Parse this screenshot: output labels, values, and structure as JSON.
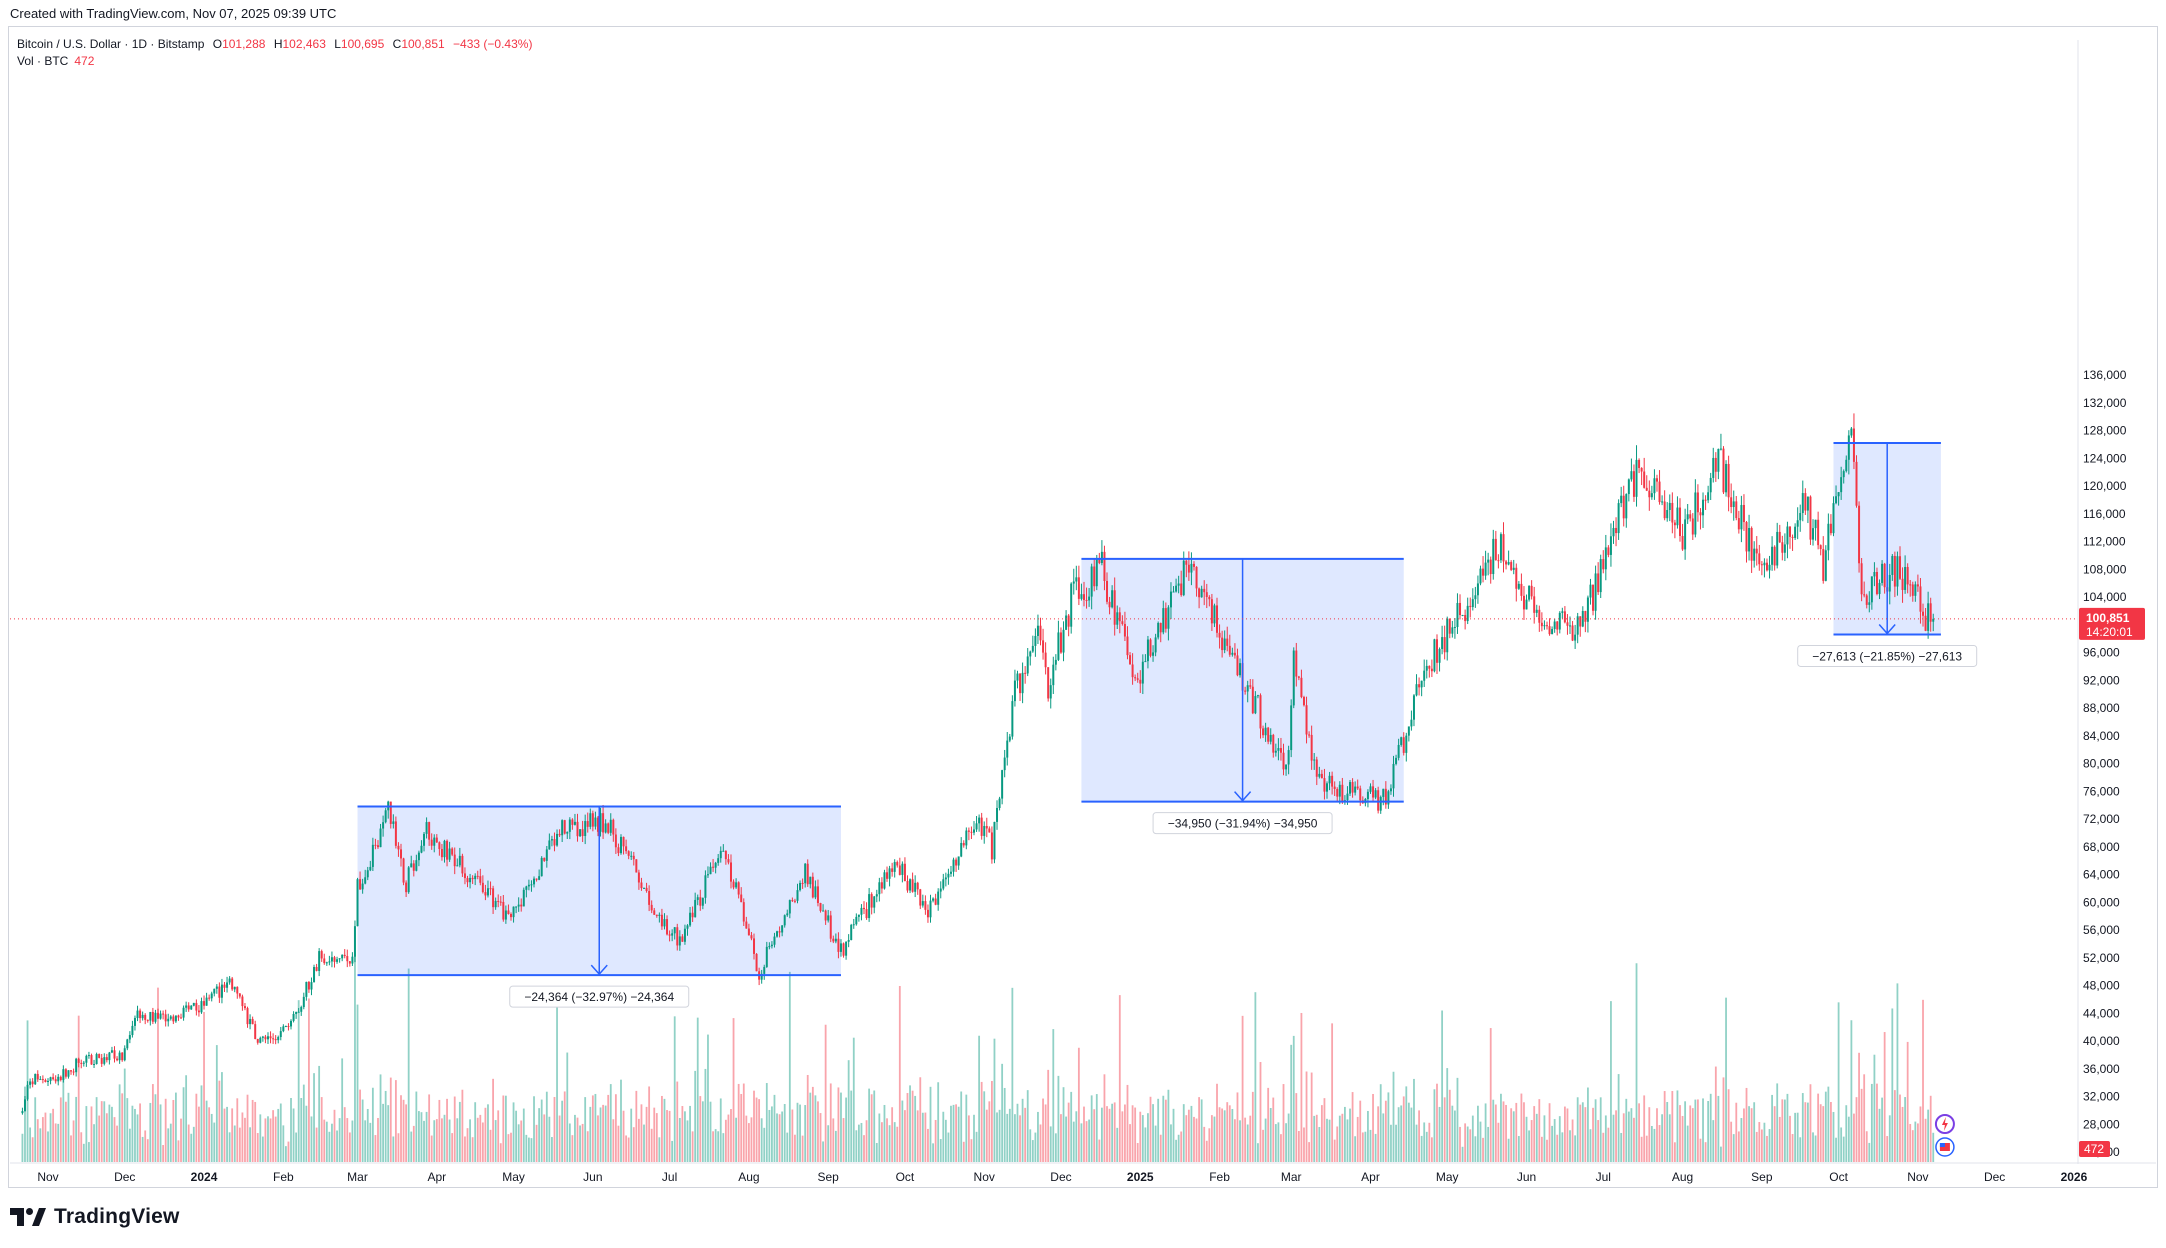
{
  "header": {
    "credit": "Created with TradingView.com, Nov 07, 2025 09:39 UTC"
  },
  "legend": {
    "symbol": "Bitcoin / U.S. Dollar · 1D · Bitstamp",
    "open_label": "O",
    "open": "101,288",
    "high_label": "H",
    "high": "102,463",
    "low_label": "L",
    "low": "100,695",
    "close_label": "C",
    "close": "100,851",
    "change": "−433 (−0.43%)",
    "vol_label": "Vol · BTC",
    "vol_value": "472"
  },
  "footer": {
    "brand": "TradingView"
  },
  "price_tag": {
    "value": "100,851",
    "countdown": "14:20:01",
    "color": "#f23645"
  },
  "volume_tag": {
    "value": "472"
  },
  "colors": {
    "up": "#089981",
    "down": "#f23645",
    "measure": "#2962ff",
    "measure_fill": "#2962ff"
  },
  "chart_data": {
    "type": "candlestick",
    "title": "Bitcoin / U.S. Dollar · 1D · Bitstamp",
    "y_ticks": [
      136000,
      132000,
      128000,
      124000,
      120000,
      116000,
      112000,
      108000,
      104000,
      100000,
      96000,
      92000,
      88000,
      84000,
      80000,
      76000,
      72000,
      68000,
      64000,
      60000,
      56000,
      52000,
      48000,
      44000,
      40000,
      36000,
      32000,
      28000,
      24000
    ],
    "y_tick_labels": [
      "136,000",
      "132,000",
      "128,000",
      "124,000",
      "120,000",
      "116,000",
      "112,000",
      "108,000",
      "104,000",
      "100,000",
      "96,000",
      "92,000",
      "88,000",
      "84,000",
      "80,000",
      "76,000",
      "72,000",
      "68,000",
      "64,000",
      "60,000",
      "56,000",
      "52,000",
      "48,000",
      "44,000",
      "40,000",
      "36,000",
      "32,000",
      "28,000",
      "24,000"
    ],
    "ylim": [
      24000,
      136000
    ],
    "x_labels": [
      {
        "date": "2023-11-01",
        "label": "Nov",
        "bold": false
      },
      {
        "date": "2023-12-01",
        "label": "Dec",
        "bold": false
      },
      {
        "date": "2024-01-01",
        "label": "2024",
        "bold": true
      },
      {
        "date": "2024-02-01",
        "label": "Feb",
        "bold": false
      },
      {
        "date": "2024-03-01",
        "label": "Mar",
        "bold": false
      },
      {
        "date": "2024-04-01",
        "label": "Apr",
        "bold": false
      },
      {
        "date": "2024-05-01",
        "label": "May",
        "bold": false
      },
      {
        "date": "2024-06-01",
        "label": "Jun",
        "bold": false
      },
      {
        "date": "2024-07-01",
        "label": "Jul",
        "bold": false
      },
      {
        "date": "2024-08-01",
        "label": "Aug",
        "bold": false
      },
      {
        "date": "2024-09-01",
        "label": "Sep",
        "bold": false
      },
      {
        "date": "2024-10-01",
        "label": "Oct",
        "bold": false
      },
      {
        "date": "2024-11-01",
        "label": "Nov",
        "bold": false
      },
      {
        "date": "2024-12-01",
        "label": "Dec",
        "bold": false
      },
      {
        "date": "2025-01-01",
        "label": "2025",
        "bold": true
      },
      {
        "date": "2025-02-01",
        "label": "Feb",
        "bold": false
      },
      {
        "date": "2025-03-01",
        "label": "Mar",
        "bold": false
      },
      {
        "date": "2025-04-01",
        "label": "Apr",
        "bold": false
      },
      {
        "date": "2025-05-01",
        "label": "May",
        "bold": false
      },
      {
        "date": "2025-06-01",
        "label": "Jun",
        "bold": false
      },
      {
        "date": "2025-07-01",
        "label": "Jul",
        "bold": false
      },
      {
        "date": "2025-08-01",
        "label": "Aug",
        "bold": false
      },
      {
        "date": "2025-09-01",
        "label": "Sep",
        "bold": false
      },
      {
        "date": "2025-10-01",
        "label": "Oct",
        "bold": false
      },
      {
        "date": "2025-11-01",
        "label": "Nov",
        "bold": false
      },
      {
        "date": "2025-12-01",
        "label": "Dec",
        "bold": false
      },
      {
        "date": "2026-01-01",
        "label": "2026",
        "bold": true
      }
    ],
    "price_path": [
      [
        "2023-10-22",
        29900
      ],
      [
        "2023-10-25",
        34500
      ],
      [
        "2023-11-05",
        35000
      ],
      [
        "2023-11-15",
        37200
      ],
      [
        "2023-11-30",
        38000
      ],
      [
        "2023-12-05",
        44000
      ],
      [
        "2023-12-20",
        43500
      ],
      [
        "2024-01-02",
        45500
      ],
      [
        "2024-01-11",
        48500
      ],
      [
        "2024-01-23",
        39500
      ],
      [
        "2024-02-05",
        43000
      ],
      [
        "2024-02-15",
        52000
      ],
      [
        "2024-02-28",
        51000
      ],
      [
        "2024-03-01",
        62000
      ],
      [
        "2024-03-13",
        73000
      ],
      [
        "2024-03-20",
        62500
      ],
      [
        "2024-03-27",
        71000
      ],
      [
        "2024-04-05",
        67000
      ],
      [
        "2024-04-13",
        64000
      ],
      [
        "2024-04-30",
        57500
      ],
      [
        "2024-05-20",
        71000
      ],
      [
        "2024-06-07",
        71500
      ],
      [
        "2024-06-24",
        60000
      ],
      [
        "2024-07-05",
        54000
      ],
      [
        "2024-07-22",
        68500
      ],
      [
        "2024-08-05",
        50000
      ],
      [
        "2024-08-23",
        64000
      ],
      [
        "2024-09-06",
        53000
      ],
      [
        "2024-09-27",
        65800
      ],
      [
        "2024-10-10",
        59000
      ],
      [
        "2024-10-29",
        72500
      ],
      [
        "2024-11-04",
        67800
      ],
      [
        "2024-11-13",
        90000
      ],
      [
        "2024-11-22",
        99000
      ],
      [
        "2024-11-26",
        91000
      ],
      [
        "2024-12-05",
        103500
      ],
      [
        "2024-12-17",
        108000
      ],
      [
        "2024-12-30",
        92000
      ],
      [
        "2025-01-20",
        109000
      ],
      [
        "2025-02-27",
        79000
      ],
      [
        "2025-03-02",
        94000
      ],
      [
        "2025-03-11",
        77000
      ],
      [
        "2025-04-07",
        74500
      ],
      [
        "2025-04-22",
        93500
      ],
      [
        "2025-05-22",
        111500
      ],
      [
        "2025-06-05",
        101000
      ],
      [
        "2025-06-22",
        99000
      ],
      [
        "2025-07-14",
        122500
      ],
      [
        "2025-08-02",
        112500
      ],
      [
        "2025-08-14",
        124500
      ],
      [
        "2025-09-01",
        107500
      ],
      [
        "2025-09-18",
        117500
      ],
      [
        "2025-09-25",
        109000
      ],
      [
        "2025-10-06",
        126000
      ],
      [
        "2025-10-10",
        104000
      ],
      [
        "2025-10-22",
        107500
      ],
      [
        "2025-10-30",
        106500
      ],
      [
        "2025-11-04",
        101000
      ],
      [
        "2025-11-07",
        100851
      ]
    ],
    "measurements": [
      {
        "from": "2024-03-01",
        "to": "2024-09-06",
        "top": 73800,
        "bottom": 49500,
        "label": "−24,364 (−32.97%) −24,364"
      },
      {
        "from": "2024-12-09",
        "to": "2025-04-14",
        "top": 109500,
        "bottom": 74500,
        "label": "−34,950 (−31.94%) −34,950"
      },
      {
        "from": "2025-09-29",
        "to": "2025-11-10",
        "top": 126200,
        "bottom": 98600,
        "label": "−27,613 (−21.85%) −27,613"
      }
    ],
    "last_price": 100851,
    "last_volume": 472,
    "series": [
      {
        "name": "Vol · BTC"
      }
    ]
  }
}
